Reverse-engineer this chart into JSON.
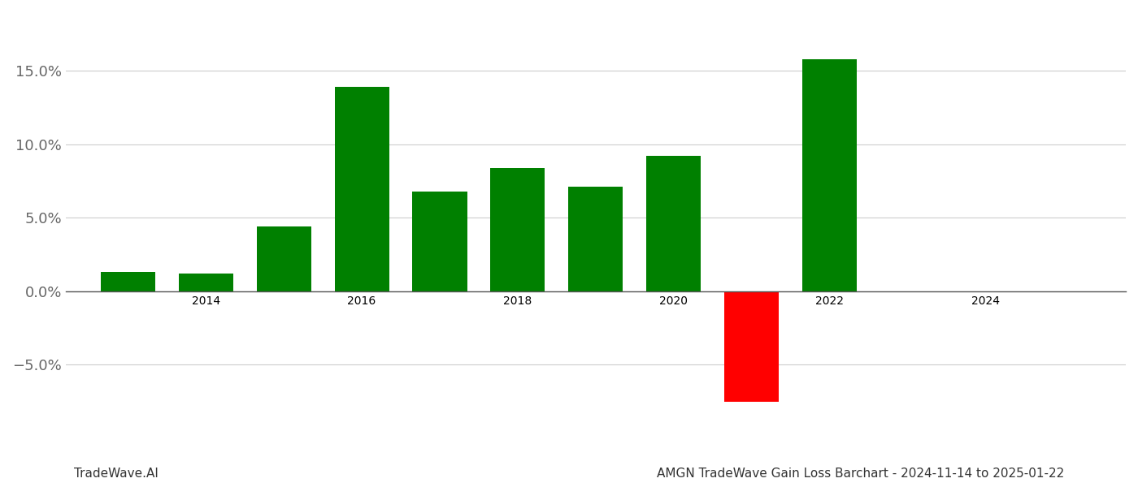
{
  "years": [
    2013,
    2014,
    2015,
    2016,
    2017,
    2018,
    2019,
    2020,
    2021,
    2022
  ],
  "values": [
    0.013,
    0.012,
    0.044,
    0.139,
    0.068,
    0.084,
    0.071,
    0.092,
    -0.075,
    0.158
  ],
  "colors": [
    "#008000",
    "#008000",
    "#008000",
    "#008000",
    "#008000",
    "#008000",
    "#008000",
    "#008000",
    "#ff0000",
    "#008000"
  ],
  "ylim": [
    -0.105,
    0.19
  ],
  "yticks": [
    -0.05,
    0.0,
    0.05,
    0.1,
    0.15
  ],
  "xlim": [
    2012.2,
    2025.8
  ],
  "xticks": [
    2014,
    2016,
    2018,
    2020,
    2022,
    2024
  ],
  "bar_width": 0.7,
  "background_color": "#ffffff",
  "grid_color": "#cccccc",
  "footer_left": "TradeWave.AI",
  "footer_right": "AMGN TradeWave Gain Loss Barchart - 2024-11-14 to 2025-01-22",
  "footer_fontsize": 11,
  "tick_fontsize": 13,
  "fig_width": 14.0,
  "fig_height": 6.0
}
